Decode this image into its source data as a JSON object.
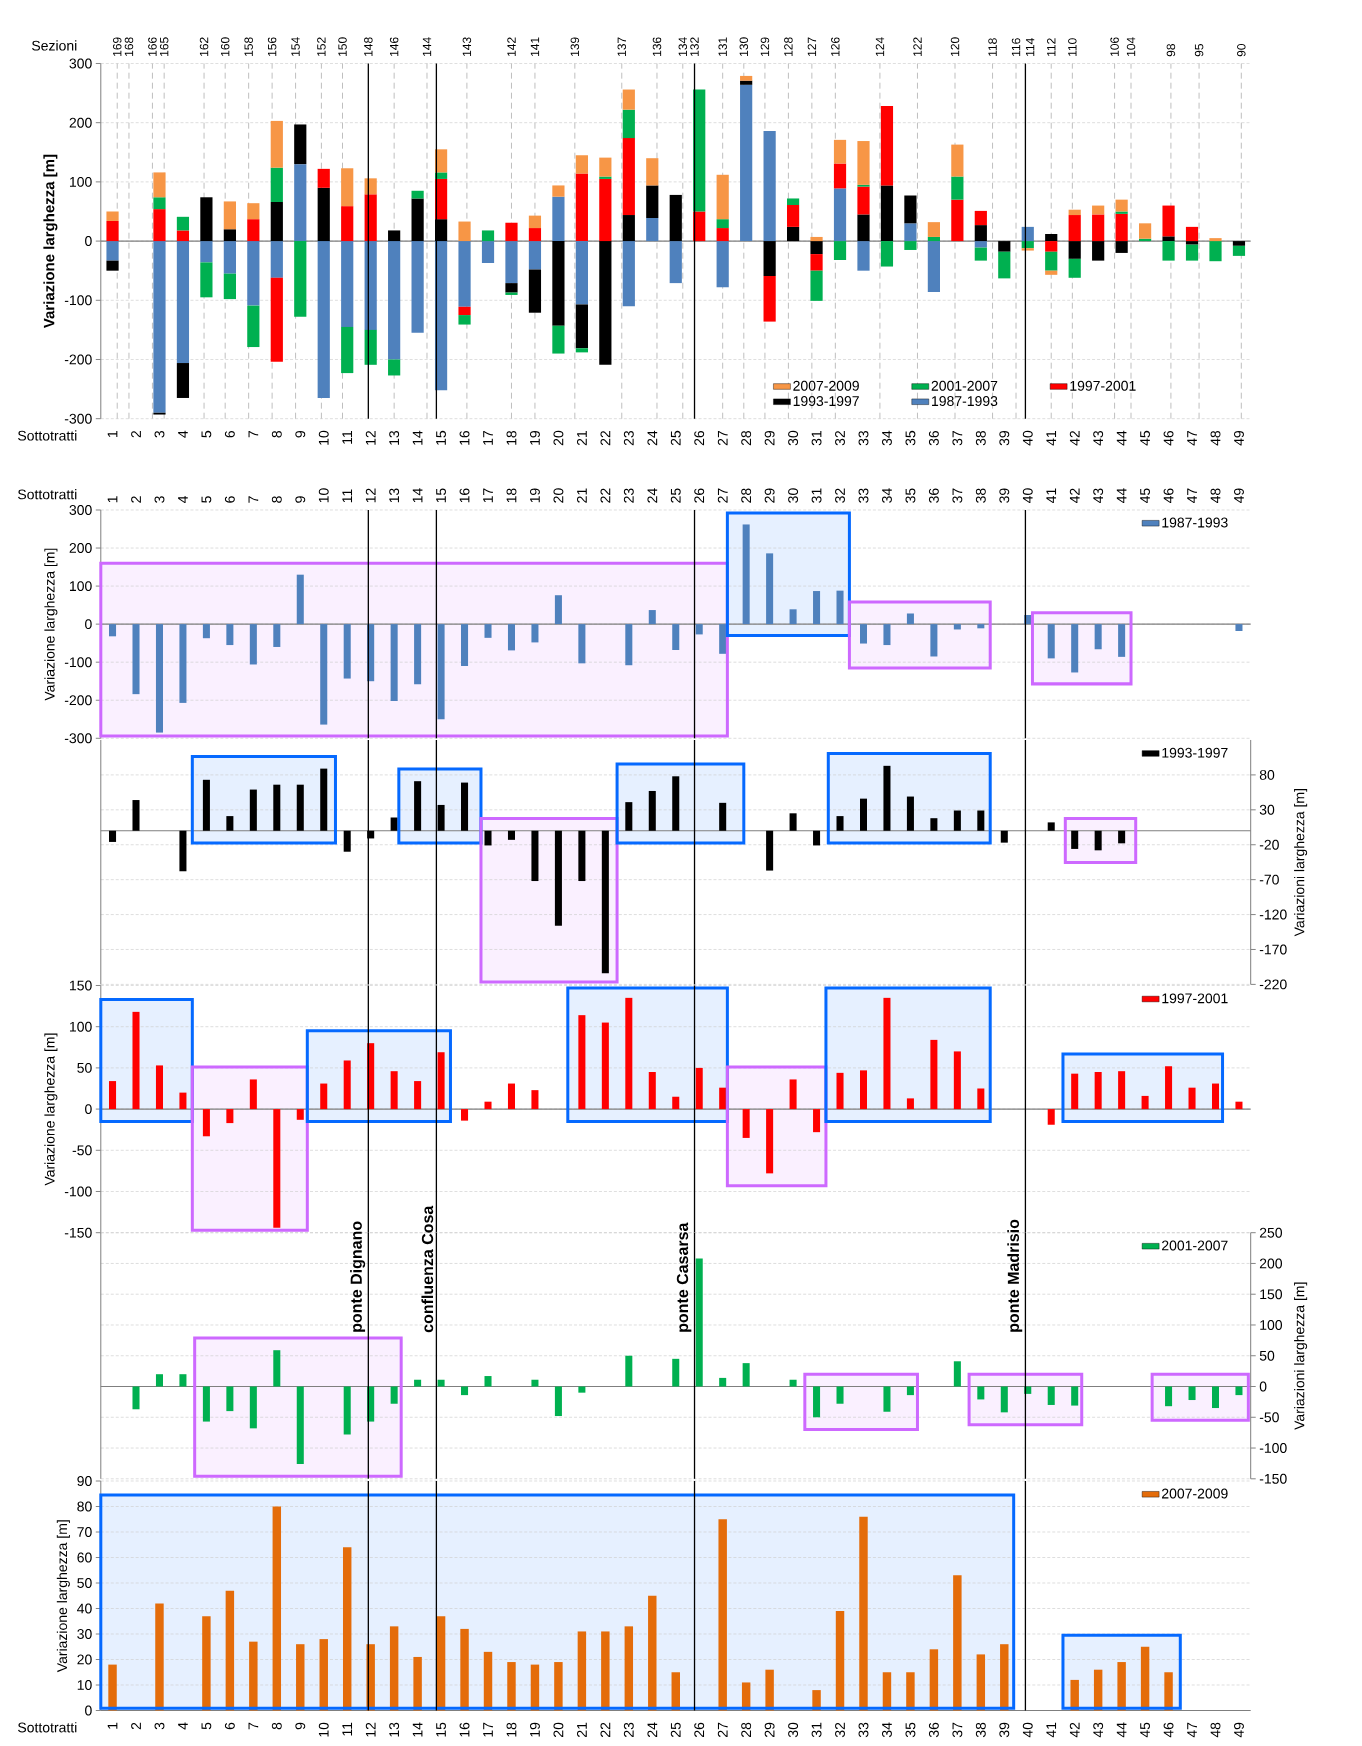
{
  "chart_data": [
    {
      "type": "bar",
      "stacked": true,
      "x": [
        1,
        2,
        3,
        4,
        5,
        6,
        7,
        8,
        9,
        10,
        11,
        12,
        13,
        14,
        15,
        16,
        17,
        18,
        19,
        20,
        21,
        22,
        23,
        24,
        25,
        26,
        27,
        28,
        29,
        30,
        31,
        32,
        33,
        34,
        35,
        36,
        37,
        38,
        39,
        40,
        41,
        42,
        43,
        44,
        45,
        46,
        47,
        48,
        49
      ],
      "xlim": [
        0.5,
        49.5
      ],
      "xticks": [
        1,
        2,
        3,
        4,
        5,
        6,
        7,
        8,
        9,
        10,
        11,
        12,
        13,
        14,
        15,
        16,
        17,
        18,
        19,
        20,
        21,
        22,
        23,
        24,
        25,
        26,
        27,
        28,
        29,
        30,
        31,
        32,
        33,
        34,
        35,
        36,
        37,
        38,
        39,
        40,
        41,
        42,
        43,
        44,
        45,
        46,
        47,
        48,
        49
      ],
      "xlabel": "Sottotratti",
      "ylabel": "Variazione larghezza [m]",
      "ylim": [
        -300,
        300
      ],
      "yticks": [
        -300,
        -200,
        -100,
        0,
        100,
        200,
        300
      ],
      "grid": "y",
      "legend": "bottom right",
      "annotations": [
        "Sezioni",
        {
          "text": "169",
          "x": 1.2,
          "y": 300
        },
        {
          "text": "168",
          "x": 1.7,
          "y": 300
        },
        {
          "text": "166",
          "x": 2.7,
          "y": 300
        },
        {
          "text": "165",
          "x": 3.2,
          "y": 300
        },
        {
          "text": "162",
          "x": 4.9,
          "y": 300
        },
        {
          "text": "160",
          "x": 5.8,
          "y": 300
        },
        {
          "text": "158",
          "x": 6.8,
          "y": 300
        },
        {
          "text": "156",
          "x": 7.8,
          "y": 300
        },
        {
          "text": "154",
          "x": 8.8,
          "y": 300
        },
        {
          "text": "152",
          "x": 9.9,
          "y": 300
        },
        {
          "text": "150",
          "x": 10.8,
          "y": 300
        },
        {
          "text": "148",
          "x": 11.9,
          "y": 300
        },
        {
          "text": "146",
          "x": 13,
          "y": 300
        },
        {
          "text": "144",
          "x": 14.4,
          "y": 300
        },
        {
          "text": "143",
          "x": 16.1,
          "y": 300
        },
        {
          "text": "142",
          "x": 18,
          "y": 300
        },
        {
          "text": "141",
          "x": 19,
          "y": 300
        },
        {
          "text": "139",
          "x": 20.7,
          "y": 300
        },
        {
          "text": "137",
          "x": 22.7,
          "y": 300
        },
        {
          "text": "136",
          "x": 24.2,
          "y": 300
        },
        {
          "text": "134",
          "x": 25.3,
          "y": 300
        },
        {
          "text": "132",
          "x": 25.8,
          "y": 300
        },
        {
          "text": "131",
          "x": 27,
          "y": 300
        },
        {
          "text": "130",
          "x": 27.9,
          "y": 300
        },
        {
          "text": "129",
          "x": 28.8,
          "y": 300
        },
        {
          "text": "128",
          "x": 29.8,
          "y": 300
        },
        {
          "text": "127",
          "x": 30.8,
          "y": 300
        },
        {
          "text": "126",
          "x": 31.8,
          "y": 300
        },
        {
          "text": "124",
          "x": 33.7,
          "y": 300
        },
        {
          "text": "122",
          "x": 35.3,
          "y": 300
        },
        {
          "text": "120",
          "x": 36.9,
          "y": 300
        },
        {
          "text": "118",
          "x": 38.5,
          "y": 300
        },
        {
          "text": "116",
          "x": 39.5,
          "y": 300
        },
        {
          "text": "114",
          "x": 40.1,
          "y": 300
        },
        {
          "text": "112",
          "x": 41,
          "y": 300
        },
        {
          "text": "110",
          "x": 41.9,
          "y": 300
        },
        {
          "text": "106",
          "x": 43.7,
          "y": 300
        },
        {
          "text": "104",
          "x": 44.4,
          "y": 300
        },
        {
          "text": "98",
          "x": 46.1,
          "y": 300
        },
        {
          "text": "95",
          "x": 47.3,
          "y": 300
        },
        {
          "text": "90",
          "x": 49.1,
          "y": 300
        }
      ],
      "series": [
        {
          "name": "1987-1993",
          "color": "#4f81bd",
          "values": [
            -33,
            null,
            -290,
            -206,
            -36,
            -55,
            -109,
            -62,
            130,
            -265,
            -145,
            -150,
            -200,
            -155,
            -252,
            -111,
            -37,
            -71,
            -48,
            75,
            -107,
            null,
            -110,
            39,
            -71,
            null,
            -78,
            264,
            186,
            null,
            null,
            89,
            -50,
            null,
            30,
            -86,
            null,
            -11,
            null,
            24,
            null,
            null,
            null,
            null,
            null,
            null,
            null,
            null,
            null
          ]
        },
        {
          "name": "1993-1997",
          "color": "#000000",
          "values": [
            -17,
            null,
            -3,
            -59,
            74,
            20,
            null,
            66,
            67,
            90,
            null,
            null,
            18,
            72,
            37,
            null,
            null,
            -16,
            -73,
            -143,
            -74,
            -209,
            44,
            55,
            78,
            null,
            null,
            7,
            -59,
            24,
            -22,
            null,
            45,
            94,
            47,
            null,
            null,
            27,
            -18,
            null,
            12,
            -30,
            -33,
            -20,
            null,
            8,
            -6,
            null,
            -8
          ]
        },
        {
          "name": "1997-2001",
          "color": "#ff0000",
          "values": [
            34,
            null,
            54,
            18,
            null,
            null,
            37,
            -142,
            null,
            32,
            59,
            79,
            null,
            null,
            68,
            -14,
            null,
            31,
            22,
            null,
            114,
            105,
            130,
            null,
            null,
            50,
            22,
            null,
            -77,
            37,
            -28,
            42,
            47,
            134,
            null,
            null,
            70,
            24,
            null,
            null,
            -18,
            44,
            45,
            46,
            null,
            52,
            24,
            null,
            null
          ]
        },
        {
          "name": "2001-2007",
          "color": "#00b050",
          "values": [
            null,
            null,
            20,
            23,
            -59,
            -43,
            -70,
            58,
            -128,
            null,
            -78,
            -59,
            -27,
            13,
            11,
            -16,
            18,
            -4,
            null,
            -47,
            -7,
            4,
            48,
            null,
            null,
            206,
            15,
            null,
            null,
            11,
            -51,
            -32,
            3,
            -43,
            -15,
            7,
            39,
            -22,
            -45,
            -12,
            -32,
            -32,
            null,
            4,
            4,
            -33,
            -27,
            -34,
            -17
          ]
        },
        {
          "name": "2007-2009",
          "color": "#f79646",
          "values": [
            16,
            null,
            42,
            null,
            null,
            47,
            27,
            79,
            null,
            null,
            64,
            27,
            null,
            null,
            39,
            33,
            null,
            null,
            21,
            19,
            31,
            32,
            34,
            46,
            null,
            null,
            75,
            8,
            null,
            null,
            7,
            40,
            74,
            null,
            null,
            25,
            54,
            null,
            null,
            -4,
            -7,
            9,
            15,
            20,
            26,
            null,
            null,
            5,
            null
          ]
        }
      ],
      "ref_lines": [
        {
          "axis": "x",
          "value": 1.2,
          "line_style": "dashed",
          "color": "#bfbfbf"
        },
        {
          "axis": "x",
          "value": 1.7,
          "line_style": "dashed",
          "color": "#bfbfbf"
        },
        {
          "axis": "x",
          "value": 2.7,
          "line_style": "dashed",
          "color": "#bfbfbf"
        },
        {
          "axis": "x",
          "value": 3.2,
          "line_style": "dashed",
          "color": "#bfbfbf"
        },
        {
          "axis": "x",
          "value": 4.9,
          "line_style": "dashed",
          "color": "#bfbfbf"
        },
        {
          "axis": "x",
          "value": 5.8,
          "line_style": "dashed",
          "color": "#bfbfbf"
        },
        {
          "axis": "x",
          "value": 6.8,
          "line_style": "dashed",
          "color": "#bfbfbf"
        },
        {
          "axis": "x",
          "value": 7.8,
          "line_style": "dashed",
          "color": "#bfbfbf"
        },
        {
          "axis": "x",
          "value": 8.8,
          "line_style": "dashed",
          "color": "#bfbfbf"
        },
        {
          "axis": "x",
          "value": 9.9,
          "line_style": "dashed",
          "color": "#bfbfbf"
        },
        {
          "axis": "x",
          "value": 10.8,
          "line_style": "dashed",
          "color": "#bfbfbf"
        },
        {
          "axis": "x",
          "value": 13,
          "line_style": "dashed",
          "color": "#bfbfbf"
        },
        {
          "axis": "x",
          "value": 14.4,
          "line_style": "dashed",
          "color": "#bfbfbf"
        },
        {
          "axis": "x",
          "value": 16.1,
          "line_style": "dashed",
          "color": "#bfbfbf"
        },
        {
          "axis": "x",
          "value": 18,
          "line_style": "dashed",
          "color": "#bfbfbf"
        },
        {
          "axis": "x",
          "value": 19,
          "line_style": "dashed",
          "color": "#bfbfbf"
        },
        {
          "axis": "x",
          "value": 20.7,
          "line_style": "dashed",
          "color": "#bfbfbf"
        },
        {
          "axis": "x",
          "value": 22.7,
          "line_style": "dashed",
          "color": "#bfbfbf"
        },
        {
          "axis": "x",
          "value": 24.2,
          "line_style": "dashed",
          "color": "#bfbfbf"
        },
        {
          "axis": "x",
          "value": 25.3,
          "line_style": "dashed",
          "color": "#bfbfbf"
        },
        {
          "axis": "x",
          "value": 27,
          "line_style": "dashed",
          "color": "#bfbfbf"
        },
        {
          "axis": "x",
          "value": 27.9,
          "line_style": "dashed",
          "color": "#bfbfbf"
        },
        {
          "axis": "x",
          "value": 28.8,
          "line_style": "dashed",
          "color": "#bfbfbf"
        },
        {
          "axis": "x",
          "value": 29.8,
          "line_style": "dashed",
          "color": "#bfbfbf"
        },
        {
          "axis": "x",
          "value": 30.8,
          "line_style": "dashed",
          "color": "#bfbfbf"
        },
        {
          "axis": "x",
          "value": 31.8,
          "line_style": "dashed",
          "color": "#bfbfbf"
        },
        {
          "axis": "x",
          "value": 33.7,
          "line_style": "dashed",
          "color": "#bfbfbf"
        },
        {
          "axis": "x",
          "value": 35.3,
          "line_style": "dashed",
          "color": "#bfbfbf"
        },
        {
          "axis": "x",
          "value": 36.9,
          "line_style": "dashed",
          "color": "#bfbfbf"
        },
        {
          "axis": "x",
          "value": 38.5,
          "line_style": "dashed",
          "color": "#bfbfbf"
        },
        {
          "axis": "x",
          "value": 39.5,
          "line_style": "dashed",
          "color": "#bfbfbf"
        },
        {
          "axis": "x",
          "value": 41,
          "line_style": "dashed",
          "color": "#bfbfbf"
        },
        {
          "axis": "x",
          "value": 41.9,
          "line_style": "dashed",
          "color": "#bfbfbf"
        },
        {
          "axis": "x",
          "value": 43.7,
          "line_style": "dashed",
          "color": "#bfbfbf"
        },
        {
          "axis": "x",
          "value": 44.4,
          "line_style": "dashed",
          "color": "#bfbfbf"
        },
        {
          "axis": "x",
          "value": 46.1,
          "line_style": "dashed",
          "color": "#bfbfbf"
        },
        {
          "axis": "x",
          "value": 47.3,
          "line_style": "dashed",
          "color": "#bfbfbf"
        },
        {
          "axis": "x",
          "value": 49.1,
          "line_style": "dashed",
          "color": "#bfbfbf"
        },
        {
          "axis": "x",
          "value": 11.9
        },
        {
          "axis": "x",
          "value": 14.8
        },
        {
          "axis": "x",
          "value": 25.8
        },
        {
          "axis": "x",
          "value": 39.9
        }
      ]
    },
    {
      "type": "bar",
      "x": [
        1,
        2,
        3,
        4,
        5,
        6,
        7,
        8,
        9,
        10,
        11,
        12,
        13,
        14,
        15,
        16,
        17,
        18,
        19,
        20,
        21,
        22,
        23,
        24,
        25,
        26,
        27,
        28,
        29,
        30,
        31,
        32,
        33,
        34,
        35,
        36,
        37,
        38,
        39,
        40,
        41,
        42,
        43,
        44,
        45,
        46,
        47,
        48,
        49
      ],
      "xlim": [
        0.5,
        49.5
      ],
      "x2lim": [
        0.5,
        49.5
      ],
      "x2label": "Sottotratti",
      "x2ticks": [
        1,
        2,
        3,
        4,
        5,
        6,
        7,
        8,
        9,
        10,
        11,
        12,
        13,
        14,
        15,
        16,
        17,
        18,
        19,
        20,
        21,
        22,
        23,
        24,
        25,
        26,
        27,
        28,
        29,
        30,
        31,
        32,
        33,
        34,
        35,
        36,
        37,
        38,
        39,
        40,
        41,
        42,
        43,
        44,
        45,
        46,
        47,
        48,
        49
      ],
      "ylabel": "Variazione larghezza [m]",
      "ylim": [
        -300,
        300
      ],
      "yticks": [
        -300,
        -200,
        -100,
        0,
        100,
        200,
        300
      ],
      "grid": "y",
      "legend": "top right",
      "series": [
        {
          "name": "1987-1993",
          "color": "#4f81bd",
          "values": [
            -32,
            -184,
            -285,
            -207,
            -37,
            -55,
            -106,
            -60,
            130,
            -264,
            -143,
            -150,
            -202,
            -158,
            -250,
            -110,
            -36,
            -69,
            -48,
            76,
            -103,
            null,
            -108,
            37,
            -68,
            -27,
            -78,
            262,
            186,
            39,
            87,
            88,
            -51,
            -55,
            28,
            -85,
            -14,
            -11,
            null,
            24,
            -90,
            -127,
            -66,
            -86,
            null,
            null,
            null,
            null,
            -18
          ]
        }
      ],
      "ref_lines": [
        {
          "axis": "x",
          "value": 11.9
        },
        {
          "axis": "x",
          "value": 14.8
        },
        {
          "axis": "x",
          "value": 25.8
        },
        {
          "axis": "x",
          "value": 39.9
        }
      ],
      "bands": [
        {
          "axis": "x",
          "from": 0.5,
          "to": 27.2,
          "color": "#faf0ff"
        },
        {
          "axis": "x",
          "from": 27.2,
          "to": 32.4,
          "color": "#e6f0ff"
        },
        {
          "axis": "x",
          "from": 32.4,
          "to": 38.4,
          "color": "#faf0ff"
        },
        {
          "axis": "x",
          "from": 40.2,
          "to": 44.4,
          "color": "#faf0ff"
        }
      ]
    },
    {
      "type": "bar",
      "x": [
        1,
        2,
        3,
        4,
        5,
        6,
        7,
        8,
        9,
        10,
        11,
        12,
        13,
        14,
        15,
        16,
        17,
        18,
        19,
        20,
        21,
        22,
        23,
        24,
        25,
        26,
        27,
        28,
        29,
        30,
        31,
        32,
        33,
        34,
        35,
        36,
        37,
        38,
        39,
        40,
        41,
        42,
        43,
        44
      ],
      "xlim": [
        0.5,
        49.5
      ],
      "tick_labels": "y",
      "y2label": "Variazioni larghezza [m]",
      "y2lim": [
        -220,
        130
      ],
      "y2ticks": [
        -220,
        -170,
        -120,
        -70,
        -20,
        30,
        80
      ],
      "grid": "y",
      "legend": "top right",
      "series": [
        {
          "name": "1993-1997",
          "color": "#000000",
          "axis": "y2",
          "values": [
            -16,
            44,
            null,
            -58,
            73,
            21,
            59,
            66,
            66,
            89,
            -30,
            -11,
            19,
            71,
            37,
            69,
            -21,
            -13,
            -72,
            -136,
            -72,
            -204,
            41,
            57,
            78,
            null,
            40,
            null,
            -57,
            25,
            -21,
            21,
            46,
            93,
            49,
            18,
            29,
            29,
            -17,
            null,
            12,
            -26,
            -28,
            -18
          ]
        }
      ],
      "ref_lines": [
        {
          "axis": "x",
          "value": 11.9
        },
        {
          "axis": "x",
          "value": 14.8
        },
        {
          "axis": "x",
          "value": 25.8
        },
        {
          "axis": "x",
          "value": 39.9
        }
      ],
      "bands": [
        {
          "axis": "x",
          "from": 4.4,
          "to": 10.5,
          "color": "#e6f0ff"
        },
        {
          "axis": "x",
          "from": 13.2,
          "to": 16.7,
          "color": "#e6f0ff"
        },
        {
          "axis": "x",
          "from": 16.7,
          "to": 22.5,
          "color": "#faf0ff"
        },
        {
          "axis": "x",
          "from": 22.5,
          "to": 27.9,
          "color": "#e6f0ff"
        },
        {
          "axis": "x",
          "from": 31.5,
          "to": 38.4,
          "color": "#e6f0ff"
        },
        {
          "axis": "x",
          "from": 41.6,
          "to": 44.6,
          "color": "#faf0ff"
        }
      ]
    },
    {
      "type": "bar",
      "x": [
        1,
        2,
        3,
        4,
        5,
        6,
        7,
        8,
        9,
        10,
        11,
        12,
        13,
        14,
        15,
        16,
        17,
        18,
        19,
        20,
        21,
        22,
        23,
        24,
        25,
        26,
        27,
        28,
        29,
        30,
        31,
        32,
        33,
        34,
        35,
        36,
        37,
        38,
        39,
        40,
        41,
        42,
        43,
        44,
        45,
        46,
        47,
        48,
        49
      ],
      "xlim": [
        0.5,
        49.5
      ],
      "tick_labels": "y",
      "ylabel": "Variazione larghezza [m]",
      "ylim": [
        -150,
        150
      ],
      "yticks": [
        -150,
        -100,
        -50,
        0,
        50,
        100,
        150
      ],
      "grid": "y",
      "legend": "top right",
      "series": [
        {
          "name": "1997-2001",
          "color": "#ff0000",
          "values": [
            34,
            118,
            53,
            20,
            -33,
            -17,
            36,
            -144,
            -13,
            31,
            59,
            80,
            46,
            34,
            69,
            -14,
            9,
            31,
            23,
            null,
            114,
            105,
            135,
            45,
            15,
            50,
            26,
            -35,
            -78,
            36,
            -28,
            44,
            47,
            135,
            13,
            84,
            70,
            25,
            null,
            null,
            -19,
            43,
            45,
            46,
            16,
            52,
            26,
            31,
            9
          ]
        }
      ],
      "ref_lines": [
        {
          "axis": "x",
          "value": 11.9
        },
        {
          "axis": "x",
          "value": 14.8
        },
        {
          "axis": "x",
          "value": 25.8
        },
        {
          "axis": "x",
          "value": 39.9
        }
      ],
      "bands": [
        {
          "axis": "x",
          "from": 0.5,
          "to": 4.4,
          "color": "#e6f0ff"
        },
        {
          "axis": "x",
          "from": 4.4,
          "to": 9.3,
          "color": "#faf0ff"
        },
        {
          "axis": "x",
          "from": 9.3,
          "to": 15.4,
          "color": "#e6f0ff"
        },
        {
          "axis": "x",
          "from": 20.4,
          "to": 27.2,
          "color": "#e6f0ff"
        },
        {
          "axis": "x",
          "from": 27.2,
          "to": 31.4,
          "color": "#faf0ff"
        },
        {
          "axis": "x",
          "from": 31.4,
          "to": 38.4,
          "color": "#e6f0ff"
        },
        {
          "axis": "x",
          "from": 41.5,
          "to": 48.3,
          "color": "#e6f0ff"
        }
      ]
    },
    {
      "type": "bar",
      "x": [
        2,
        3,
        4,
        5,
        6,
        7,
        8,
        9,
        10,
        11,
        12,
        13,
        14,
        15,
        16,
        17,
        18,
        19,
        20,
        21,
        22,
        23,
        24,
        25,
        26,
        27,
        28,
        29,
        30,
        31,
        32,
        33,
        34,
        35,
        36,
        37,
        38,
        39,
        40,
        41,
        42,
        43,
        44,
        45,
        46,
        47,
        48,
        49
      ],
      "xlim": [
        0.5,
        49.5
      ],
      "tick_labels": "y",
      "y2label": "Variazioni larghezza [m]",
      "y2lim": [
        -150,
        250
      ],
      "y2ticks": [
        -150,
        -100,
        -50,
        0,
        50,
        100,
        150,
        200,
        250
      ],
      "grid": "y",
      "legend": "top right",
      "series": [
        {
          "name": "2001-2007",
          "color": "#00b050",
          "axis": "y2",
          "values": [
            -37,
            20,
            20,
            -57,
            -40,
            -68,
            59,
            -126,
            null,
            -78,
            -57,
            -28,
            11,
            11,
            -14,
            17,
            null,
            11,
            -48,
            -10,
            null,
            50,
            null,
            45,
            208,
            14,
            38,
            null,
            11,
            -50,
            -28,
            null,
            -41,
            -14,
            null,
            41,
            -21,
            -42,
            -12,
            -30,
            -31,
            null,
            null,
            null,
            -32,
            -22,
            -35,
            -14
          ]
        }
      ],
      "ref_lines": [
        {
          "axis": "x",
          "value": 11.9,
          "label": "ponte Dignano"
        },
        {
          "axis": "x",
          "value": 14.8,
          "label": "confluenza Cosa"
        },
        {
          "axis": "x",
          "value": 25.8,
          "label": "ponte Casarsa"
        },
        {
          "axis": "x",
          "value": 39.9,
          "label": "ponte Madrisio"
        }
      ],
      "bands": [
        {
          "axis": "x",
          "from": 4.5,
          "to": 13.3,
          "color": "#faf0ff"
        },
        {
          "axis": "x",
          "from": 30.5,
          "to": 35.3,
          "color": "#faf0ff"
        },
        {
          "axis": "x",
          "from": 37.5,
          "to": 42.3,
          "color": "#faf0ff"
        },
        {
          "axis": "x",
          "from": 45.3,
          "to": 49.4,
          "color": "#faf0ff"
        }
      ]
    },
    {
      "type": "bar",
      "x": [
        1,
        2,
        3,
        4,
        5,
        6,
        7,
        8,
        9,
        10,
        11,
        12,
        13,
        14,
        15,
        16,
        17,
        18,
        19,
        20,
        21,
        22,
        23,
        24,
        25,
        26,
        27,
        28,
        29,
        30,
        31,
        32,
        33,
        34,
        35,
        36,
        37,
        38,
        39,
        40,
        41,
        42,
        43,
        44,
        45,
        46
      ],
      "xlim": [
        0.5,
        49.5
      ],
      "xticks": [
        1,
        2,
        3,
        4,
        5,
        6,
        7,
        8,
        9,
        10,
        11,
        12,
        13,
        14,
        15,
        16,
        17,
        18,
        19,
        20,
        21,
        22,
        23,
        24,
        25,
        26,
        27,
        28,
        29,
        30,
        31,
        32,
        33,
        34,
        35,
        36,
        37,
        38,
        39,
        40,
        41,
        42,
        43,
        44,
        45,
        46,
        47,
        48,
        49
      ],
      "xlabel": "Sottotratti",
      "ylabel": "Variazione larghezza [m]",
      "ylim": [
        0,
        90
      ],
      "yticks": [
        0,
        10,
        20,
        30,
        40,
        50,
        60,
        70,
        80,
        90
      ],
      "grid": "y",
      "legend": "top right",
      "series": [
        {
          "name": "2007-2009",
          "color": "#e46c0a",
          "values": [
            18,
            null,
            42,
            null,
            37,
            47,
            27,
            80,
            26,
            28,
            64,
            26,
            33,
            21,
            37,
            32,
            23,
            19,
            18,
            19,
            31,
            31,
            33,
            45,
            15,
            null,
            75,
            11,
            16,
            null,
            8,
            39,
            76,
            15,
            15,
            24,
            53,
            22,
            26,
            null,
            null,
            12,
            16,
            19,
            25,
            15
          ]
        }
      ],
      "ref_lines": [
        {
          "axis": "x",
          "value": 11.9
        },
        {
          "axis": "x",
          "value": 14.8
        },
        {
          "axis": "x",
          "value": 25.8
        },
        {
          "axis": "x",
          "value": 39.9
        }
      ],
      "bands": [
        {
          "axis": "x",
          "from": 0.5,
          "to": 39.4,
          "color": "#e6f0ff"
        },
        {
          "axis": "x",
          "from": 41.5,
          "to": 46.5,
          "color": "#e6f0ff"
        }
      ]
    }
  ]
}
